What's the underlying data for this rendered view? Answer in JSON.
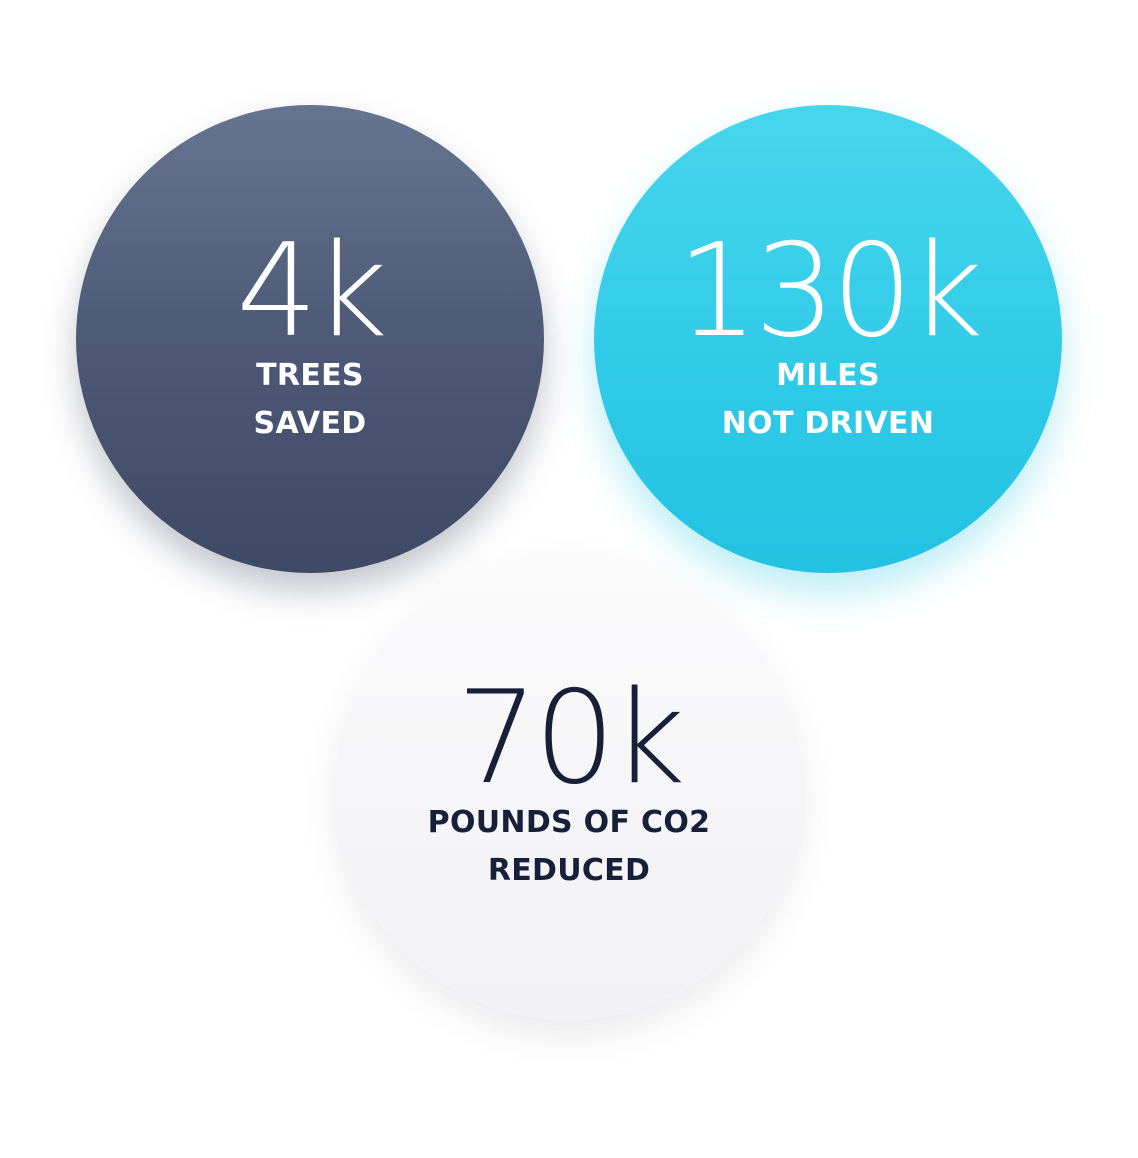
{
  "stats": [
    {
      "value": "4k",
      "label_line1": "TREES",
      "label_line2": "SAVED",
      "color": "#4b5774"
    },
    {
      "value": "130k",
      "label_line1": "MILES",
      "label_line2": "NOT DRIVEN",
      "color": "#31cbe8"
    },
    {
      "value": "70k",
      "label_line1": "POUNDS OF CO2",
      "label_line2": "REDUCED",
      "color": "#f5f5f7"
    }
  ],
  "colors": {
    "dark_text": "#162038",
    "light_text": "#ffffff",
    "background": "#ffffff"
  }
}
